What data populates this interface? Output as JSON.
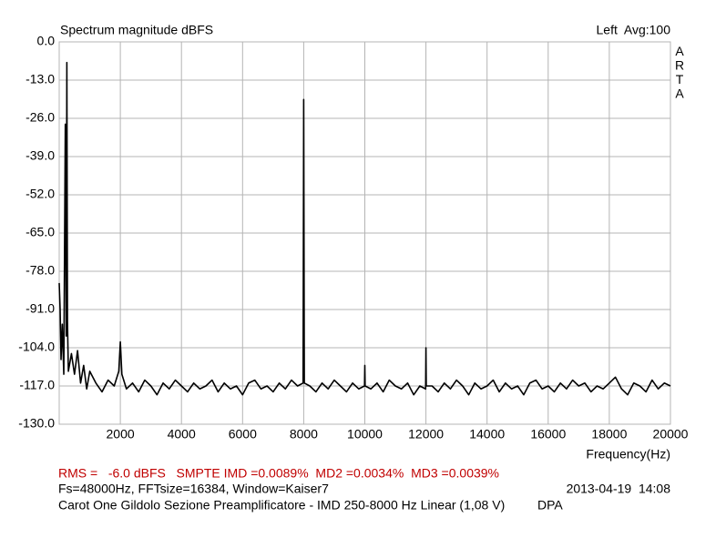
{
  "chart_data": {
    "type": "line",
    "title": "Spectrum magnitude dBFS",
    "x_label": "Frequency(Hz)",
    "annotations": {
      "channel": "Left  Avg:100",
      "brand": "ARTA",
      "measurements": "RMS =   -6.0 dBFS   SMPTE IMD =0.0089%  MD2 =0.0034%  MD3 =0.0039%",
      "settings": "Fs=48000Hz, FFTsize=16384, Window=Kaiser7",
      "timestamp": "2013-04-19  14:08",
      "description": "Carot One Gildolo Sezione Preamplificatore - IMD 250-8000 Hz Linear (1,08 V)",
      "tag": "DPA"
    },
    "xlim": [
      0,
      20000
    ],
    "xticks": [
      2000,
      4000,
      6000,
      8000,
      10000,
      12000,
      14000,
      16000,
      18000,
      20000
    ],
    "ylim": [
      -130,
      0
    ],
    "yticks": [
      {
        "value": 0,
        "label": "0.0"
      },
      {
        "value": -13,
        "label": "-13.0"
      },
      {
        "value": -26,
        "label": "-26.0"
      },
      {
        "value": -39,
        "label": "-39.0"
      },
      {
        "value": -52,
        "label": "-52.0"
      },
      {
        "value": -65,
        "label": "-65.0"
      },
      {
        "value": -78,
        "label": "-78.0"
      },
      {
        "value": -91,
        "label": "-91.0"
      },
      {
        "value": -104,
        "label": "-104.0"
      },
      {
        "value": -117,
        "label": "-117.0"
      },
      {
        "value": -130,
        "label": "-130.0"
      }
    ],
    "grid": true,
    "x": [
      0,
      30,
      60,
      100,
      150,
      200,
      230,
      250,
      270,
      300,
      400,
      500,
      600,
      700,
      800,
      900,
      1000,
      1200,
      1400,
      1600,
      1800,
      1950,
      2000,
      2050,
      2200,
      2400,
      2600,
      2800,
      3000,
      3200,
      3400,
      3600,
      3800,
      4000,
      4200,
      4400,
      4600,
      4800,
      5000,
      5200,
      5400,
      5600,
      5800,
      6000,
      6200,
      6400,
      6600,
      6800,
      7000,
      7200,
      7400,
      7600,
      7800,
      7980,
      8000,
      8020,
      8200,
      8400,
      8600,
      8800,
      9000,
      9200,
      9400,
      9600,
      9800,
      9990,
      10000,
      10010,
      10200,
      10400,
      10600,
      10800,
      11000,
      11200,
      11400,
      11600,
      11800,
      11990,
      12000,
      12010,
      12200,
      12400,
      12600,
      12800,
      13000,
      13200,
      13400,
      13600,
      13800,
      14000,
      14200,
      14400,
      14600,
      14800,
      15000,
      15200,
      15400,
      15600,
      15800,
      16000,
      16200,
      16400,
      16600,
      16800,
      17000,
      17200,
      17400,
      17600,
      17800,
      18000,
      18200,
      18400,
      18600,
      18800,
      19000,
      19200,
      19400,
      19600,
      19800,
      20000
    ],
    "series": [
      {
        "color": "#000000",
        "values": [
          -82,
          -91,
          -108,
          -96,
          -113,
          -28,
          -100,
          -7,
          -95,
          -112,
          -106,
          -113,
          -105,
          -116,
          -110,
          -118,
          -112,
          -116,
          -119,
          -115,
          -117,
          -112,
          -102,
          -113,
          -118,
          -116,
          -119,
          -115,
          -117,
          -120,
          -116,
          -118,
          -115,
          -117,
          -119,
          -116,
          -118,
          -117,
          -115,
          -119,
          -116,
          -118,
          -117,
          -120,
          -116,
          -115,
          -118,
          -117,
          -119,
          -116,
          -118,
          -115,
          -117,
          -116,
          -19.6,
          -116,
          -117,
          -119,
          -116,
          -118,
          -115,
          -117,
          -119,
          -116,
          -118,
          -117,
          -110,
          -117,
          -118,
          -116,
          -119,
          -115,
          -117,
          -118,
          -116,
          -120,
          -117,
          -118,
          -104,
          -117,
          -117,
          -119,
          -116,
          -118,
          -115,
          -117,
          -120,
          -116,
          -118,
          -117,
          -115,
          -119,
          -116,
          -118,
          -117,
          -120,
          -116,
          -115,
          -118,
          -117,
          -119,
          -116,
          -118,
          -115,
          -117,
          -116,
          -119,
          -117,
          -118,
          -116,
          -114,
          -118,
          -120,
          -116,
          -117,
          -119,
          -115,
          -118,
          -116,
          -117
        ]
      }
    ]
  }
}
